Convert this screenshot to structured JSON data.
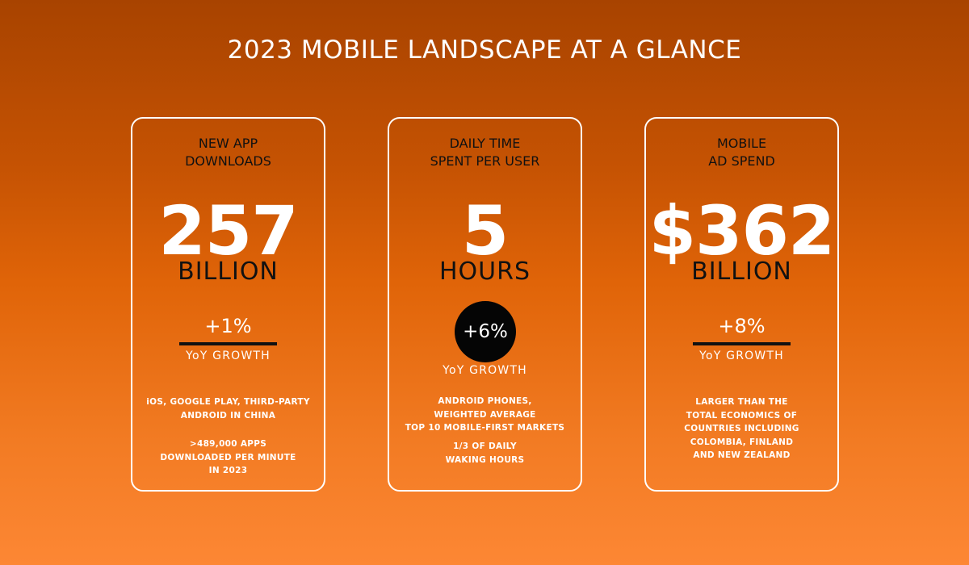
{
  "title": "2023 MOBILE LANDSCAPE AT A GLANCE",
  "colors": {
    "background_top": "#a84300",
    "background_mid": "#e06408",
    "background_bottom": "#fd8734",
    "card_border": "#ffffff",
    "header_text": "#111111",
    "number_text": "#ffffff",
    "accent_dark": "#050505"
  },
  "cards": [
    {
      "header": [
        "NEW APP",
        "DOWNLOADS"
      ],
      "value": "257",
      "unit": "BILLION",
      "growth": "+1%",
      "growth_label": "YoY GROWTH",
      "growth_style": "underline",
      "notes": [
        [
          "iOS, GOOGLE PLAY, THIRD-PARTY",
          "ANDROID IN CHINA"
        ],
        [
          ">489,000 APPS",
          "DOWNLOADED PER MINUTE",
          "IN 2023"
        ]
      ]
    },
    {
      "header": [
        "DAILY TIME",
        "SPENT PER USER"
      ],
      "value": "5",
      "unit": "HOURS",
      "growth": "+6%",
      "growth_label": "YoY GROWTH",
      "growth_style": "circle",
      "notes": [
        [
          "ANDROID PHONES,",
          "WEIGHTED AVERAGE",
          "TOP 10 MOBILE-FIRST MARKETS"
        ],
        [
          "1/3 OF DAILY",
          "WAKING HOURS"
        ]
      ]
    },
    {
      "header": [
        "MOBILE",
        "AD SPEND"
      ],
      "value": "$362",
      "unit": "BILLION",
      "growth": "+8%",
      "growth_label": "YoY GROWTH",
      "growth_style": "underline",
      "notes": [
        [
          "LARGER THAN THE",
          "TOTAL ECONOMICS OF",
          "COUNTRIES INCLUDING",
          "COLOMBIA, FINLAND",
          "AND NEW ZEALAND"
        ]
      ]
    }
  ]
}
